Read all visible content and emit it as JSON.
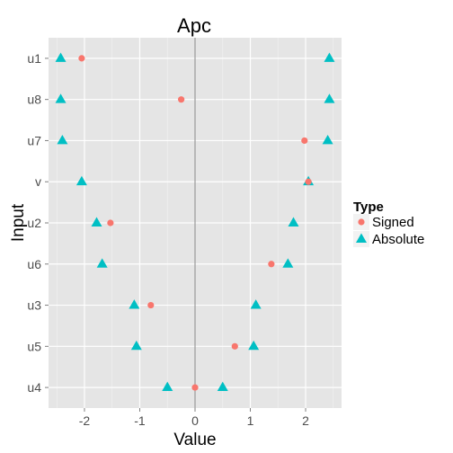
{
  "chart_data": {
    "type": "scatter",
    "title": "Apc",
    "xlabel": "Value",
    "ylabel": "Input",
    "xlim": [
      -2.65,
      2.65
    ],
    "xticks": [
      -2,
      -1,
      0,
      1,
      2
    ],
    "categories": [
      "u1",
      "u8",
      "u7",
      "v",
      "u2",
      "u6",
      "u3",
      "u5",
      "u4"
    ],
    "reference_line_x": 0,
    "grid": true,
    "legend": {
      "title": "Type",
      "position": "right"
    },
    "series": [
      {
        "name": "Signed",
        "marker": "circle",
        "color": "#F8766D",
        "points": [
          {
            "category": "u1",
            "x": -2.05
          },
          {
            "category": "u8",
            "x": -0.25
          },
          {
            "category": "u7",
            "x": 1.98
          },
          {
            "category": "v",
            "x": 2.05
          },
          {
            "category": "u2",
            "x": -1.53
          },
          {
            "category": "u6",
            "x": 1.38
          },
          {
            "category": "u3",
            "x": -0.8
          },
          {
            "category": "u5",
            "x": 0.72
          },
          {
            "category": "u4",
            "x": 0.0
          }
        ]
      },
      {
        "name": "Absolute",
        "marker": "triangle",
        "color": "#00BFC4",
        "points": [
          {
            "category": "u1",
            "x": -2.43
          },
          {
            "category": "u1",
            "x": 2.43
          },
          {
            "category": "u8",
            "x": -2.43
          },
          {
            "category": "u8",
            "x": 2.43
          },
          {
            "category": "u7",
            "x": -2.4
          },
          {
            "category": "u7",
            "x": 2.4
          },
          {
            "category": "v",
            "x": -2.05
          },
          {
            "category": "v",
            "x": 2.05
          },
          {
            "category": "u2",
            "x": -1.78
          },
          {
            "category": "u2",
            "x": 1.78
          },
          {
            "category": "u6",
            "x": -1.68
          },
          {
            "category": "u6",
            "x": 1.68
          },
          {
            "category": "u3",
            "x": -1.1
          },
          {
            "category": "u3",
            "x": 1.1
          },
          {
            "category": "u5",
            "x": -1.06
          },
          {
            "category": "u5",
            "x": 1.06
          },
          {
            "category": "u4",
            "x": -0.5
          },
          {
            "category": "u4",
            "x": 0.5
          }
        ]
      }
    ]
  }
}
